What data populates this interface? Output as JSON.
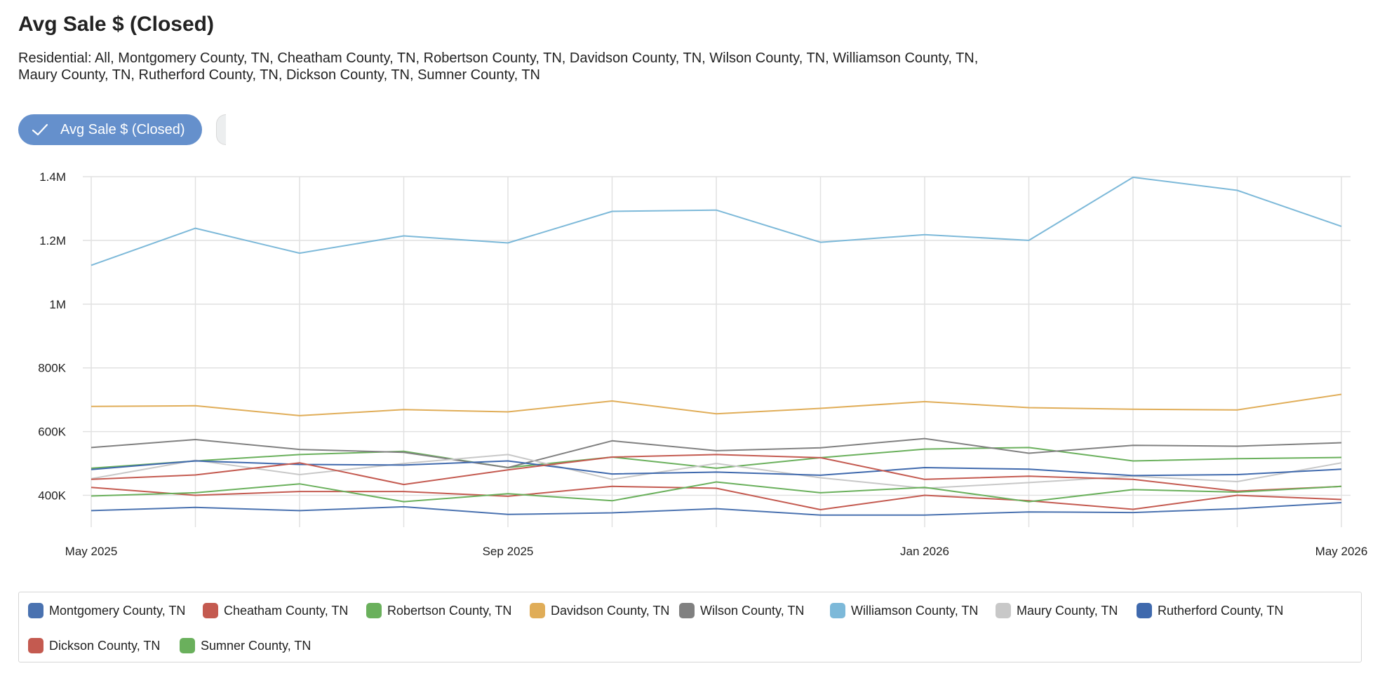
{
  "header": {
    "title": "Avg Sale $ (Closed)",
    "subtitle": "Residential: All, Montgomery County, TN, Cheatham County, TN, Robertson County, TN, Davidson County, TN, Wilson County, TN, Williamson County, TN, Maury County, TN, Rutherford County, TN, Dickson County, TN, Sumner County, TN"
  },
  "toggle": {
    "label": "Avg Sale $ (Closed)",
    "checked": true,
    "icon": "check-icon"
  },
  "chart_data": {
    "type": "line",
    "x": [
      "May 2025",
      "Jun 2025",
      "Jul 2025",
      "Aug 2025",
      "Sep 2025",
      "Oct 2025",
      "Nov 2025",
      "Dec 2025",
      "Jan 2026",
      "Feb 2026",
      "Mar 2026",
      "Apr 2026",
      "May 2026"
    ],
    "x_tick_labels": [
      "May 2025",
      "Sep 2025",
      "Jan 2026",
      "May 2026"
    ],
    "ylim": [
      300000,
      1400000
    ],
    "y_ticks": [
      400000,
      600000,
      800000,
      1000000,
      1200000,
      1400000
    ],
    "y_tick_labels": [
      "400K",
      "600K",
      "800K",
      "1M",
      "1.2M",
      "1.4M"
    ],
    "grid": true,
    "legend_position": "bottom",
    "series": [
      {
        "name": "Montgomery County, TN",
        "color": "#4a72b0",
        "values": [
          352000,
          362000,
          352000,
          364000,
          340000,
          345000,
          358000,
          338000,
          338000,
          348000,
          346000,
          358000,
          377000
        ]
      },
      {
        "name": "Cheatham County, TN",
        "color": "#c45a50",
        "values": [
          425000,
          400000,
          412000,
          412000,
          397000,
          428000,
          422000,
          355000,
          400000,
          383000,
          356000,
          400000,
          387000
        ]
      },
      {
        "name": "Robertson County, TN",
        "color": "#6ab05c",
        "values": [
          485000,
          508000,
          528000,
          538000,
          487000,
          520000,
          485000,
          518000,
          545000,
          550000,
          508000,
          515000,
          519000
        ]
      },
      {
        "name": "Davidson County, TN",
        "color": "#e0ad58",
        "values": [
          679000,
          681000,
          650000,
          669000,
          662000,
          696000,
          656000,
          673000,
          694000,
          675000,
          670000,
          668000,
          717000
        ]
      },
      {
        "name": "Wilson County, TN",
        "color": "#808080",
        "values": [
          550000,
          575000,
          544000,
          535000,
          487000,
          571000,
          540000,
          549000,
          578000,
          532000,
          557000,
          554000,
          565000
        ]
      },
      {
        "name": "Williamson County, TN",
        "color": "#7db9d9",
        "values": [
          1122000,
          1238000,
          1160000,
          1214000,
          1192000,
          1291000,
          1295000,
          1194000,
          1218000,
          1200000,
          1398000,
          1357000,
          1244000
        ]
      },
      {
        "name": "Maury County, TN",
        "color": "#c8c8c8",
        "values": [
          452000,
          510000,
          465000,
          500000,
          528000,
          450000,
          500000,
          455000,
          422000,
          440000,
          460000,
          443000,
          502000
        ]
      },
      {
        "name": "Rutherford County, TN",
        "color": "#3f69ad",
        "values": [
          481000,
          508000,
          497000,
          495000,
          508000,
          467000,
          473000,
          463000,
          487000,
          482000,
          462000,
          465000,
          482000
        ]
      },
      {
        "name": "Dickson County, TN",
        "color": "#c45a50",
        "values": [
          450000,
          464000,
          502000,
          434000,
          480000,
          520000,
          528000,
          518000,
          450000,
          460000,
          450000,
          413000,
          428000
        ]
      },
      {
        "name": "Sumner County, TN",
        "color": "#6ab05c",
        "values": [
          398000,
          408000,
          436000,
          380000,
          405000,
          383000,
          442000,
          408000,
          425000,
          380000,
          418000,
          410000,
          428000
        ]
      }
    ]
  }
}
